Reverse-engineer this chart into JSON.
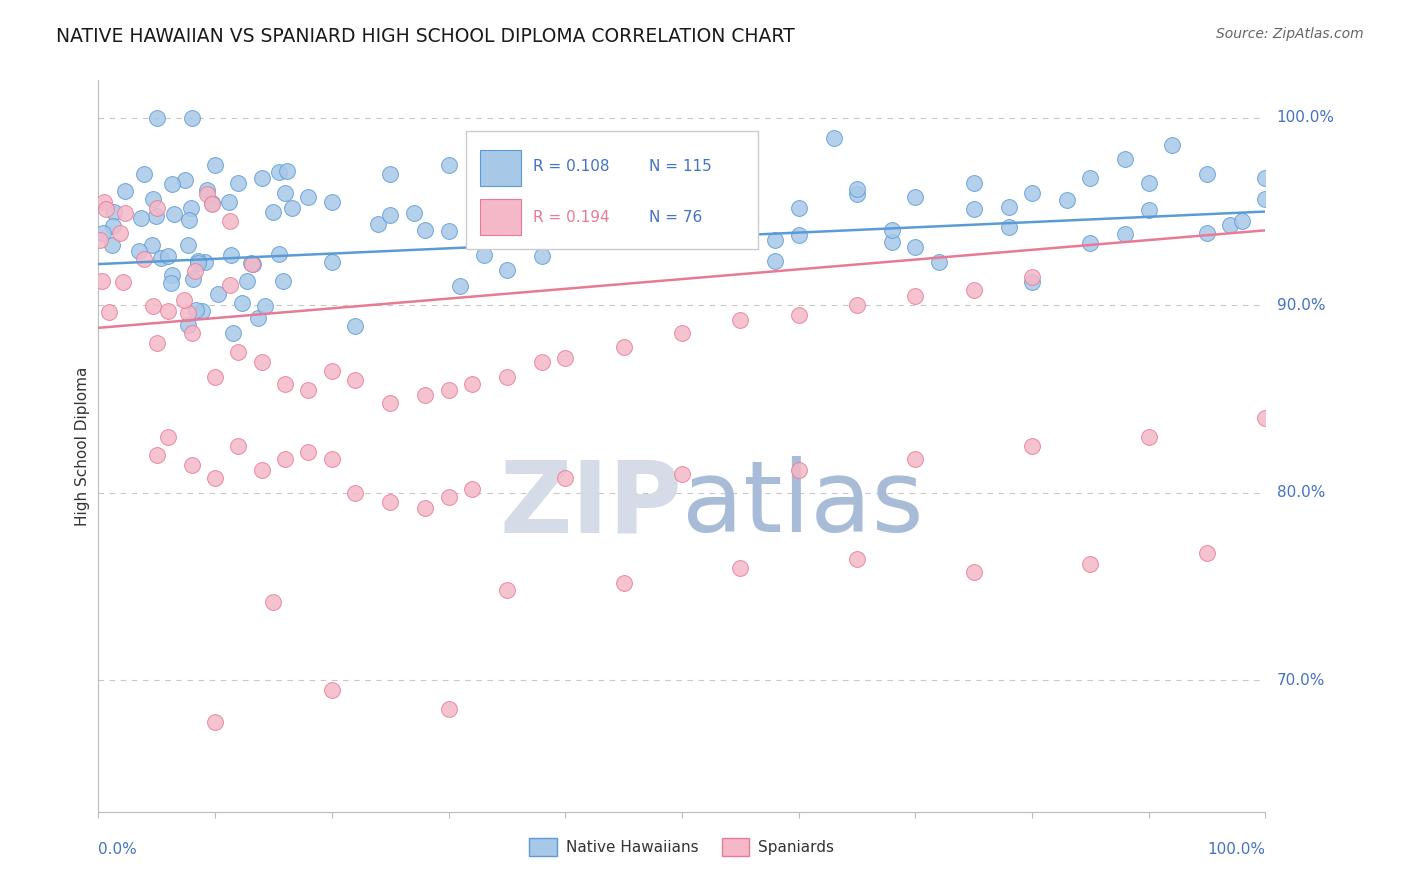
{
  "title": "NATIVE HAWAIIAN VS SPANIARD HIGH SCHOOL DIPLOMA CORRELATION CHART",
  "source": "Source: ZipAtlas.com",
  "ylabel": "High School Diploma",
  "ytick_vals": [
    0.7,
    0.8,
    0.9,
    1.0
  ],
  "ytick_labels": [
    "70.0%",
    "80.0%",
    "90.0%",
    "100.0%"
  ],
  "blue_color": "#A8C8E8",
  "blue_edge_color": "#5B9BD5",
  "pink_color": "#F4B8C8",
  "pink_edge_color": "#E87A95",
  "blue_line_color": "#5B9BD5",
  "pink_line_color": "#E87A95",
  "axis_color": "#4472C4",
  "grid_color": "#C8C8C8",
  "watermark_color": "#D8E0EC",
  "background_color": "#FFFFFF",
  "legend_R_blue": "R = 0.108",
  "legend_N_blue": "N = 115",
  "legend_R_pink": "R = 0.194",
  "legend_N_pink": "N = 76",
  "xlim": [
    0.0,
    1.0
  ],
  "ylim": [
    0.63,
    1.02
  ],
  "blue_trend": [
    0.922,
    0.95
  ],
  "pink_trend": [
    0.888,
    0.94
  ]
}
